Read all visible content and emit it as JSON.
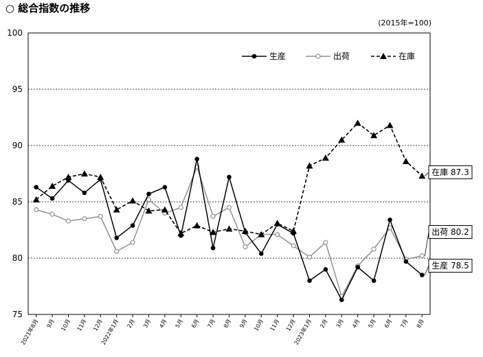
{
  "chart_data": {
    "type": "line",
    "title": "○ 総合指数の推移",
    "unit_note": "(2015年=100)",
    "x": [
      "2021年8月",
      "9月",
      "10月",
      "11月",
      "12月",
      "2022年1月",
      "2月",
      "3月",
      "4月",
      "5月",
      "6月",
      "7月",
      "8月",
      "9月",
      "10月",
      "11月",
      "12月",
      "2023年1月",
      "2月",
      "3月",
      "4月",
      "5月",
      "6月",
      "7月",
      "8月"
    ],
    "ylim": [
      75,
      100
    ],
    "yticks": [
      75,
      80,
      85,
      90,
      95,
      100
    ],
    "grid": "horizontal-dashed",
    "legend_position": "top-right",
    "series": [
      {
        "name": "生産",
        "style": "solid",
        "marker": "filled-circle",
        "color": "#000000",
        "values": [
          86.3,
          85.3,
          86.9,
          85.8,
          87.0,
          81.8,
          82.9,
          85.7,
          86.3,
          82.0,
          88.8,
          80.9,
          87.2,
          82.3,
          80.4,
          83.0,
          82.2,
          78.0,
          79.0,
          76.3,
          79.2,
          78.0,
          83.4,
          79.7,
          78.5
        ]
      },
      {
        "name": "出荷",
        "style": "solid",
        "marker": "open-circle",
        "color": "#909090",
        "values": [
          84.3,
          83.9,
          83.3,
          83.5,
          83.7,
          80.6,
          81.4,
          85.2,
          84.0,
          84.5,
          88.1,
          83.7,
          84.5,
          81.0,
          82.1,
          82.1,
          81.1,
          80.1,
          81.4,
          76.6,
          79.3,
          80.8,
          82.7,
          79.9,
          80.2
        ]
      },
      {
        "name": "在庫",
        "style": "dashed",
        "marker": "filled-triangle",
        "color": "#000000",
        "values": [
          85.2,
          86.4,
          87.2,
          87.5,
          87.2,
          84.3,
          85.1,
          84.2,
          84.3,
          82.2,
          82.9,
          82.3,
          82.6,
          82.4,
          82.1,
          83.1,
          82.4,
          88.2,
          88.9,
          90.5,
          92.0,
          90.9,
          91.8,
          88.6,
          87.3
        ]
      }
    ],
    "end_labels": [
      {
        "series": "在庫",
        "text": "在庫 87.3"
      },
      {
        "series": "出荷",
        "text": "出荷 80.2"
      },
      {
        "series": "生産",
        "text": "生産 78.5"
      }
    ]
  }
}
